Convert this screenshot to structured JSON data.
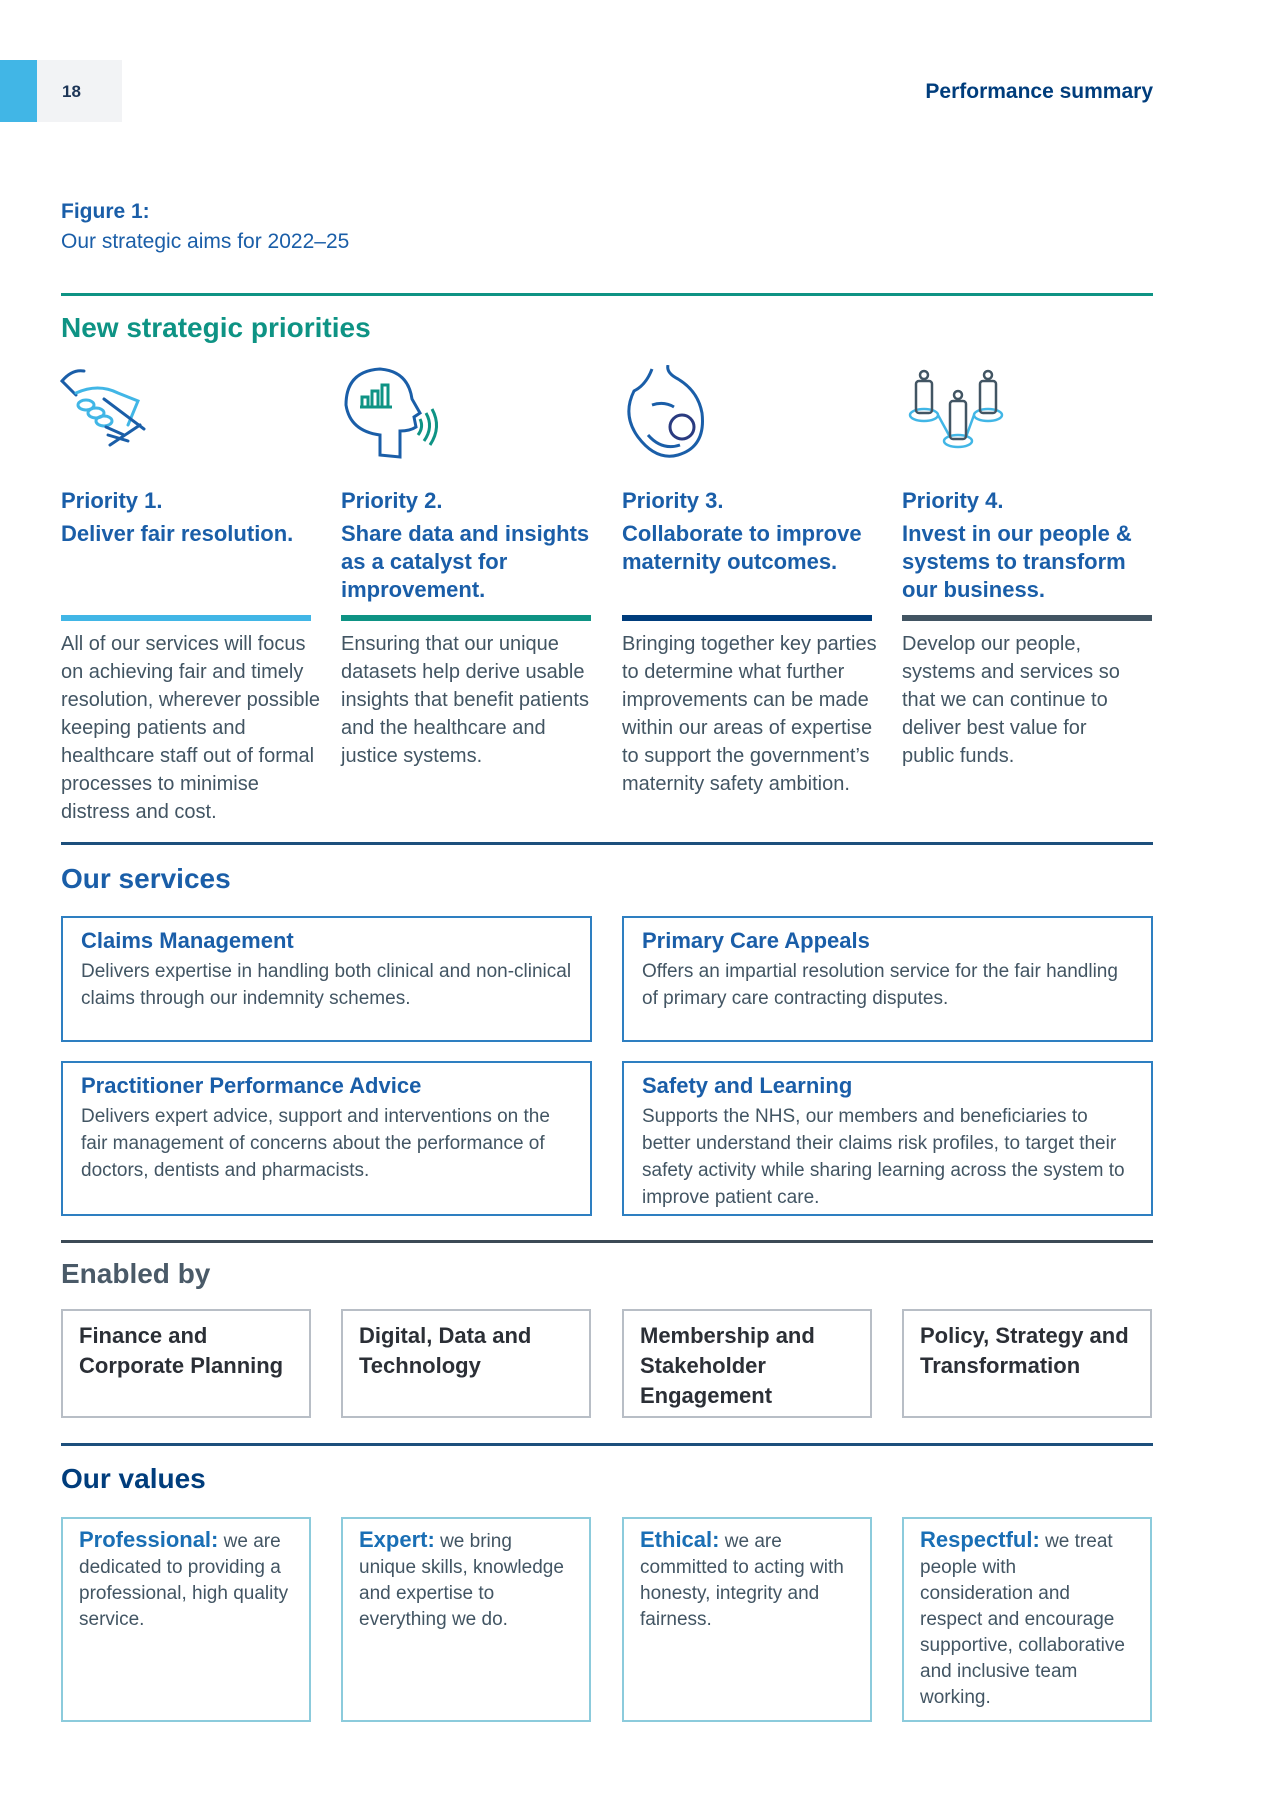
{
  "header": {
    "page_number": "18",
    "section": "Performance summary"
  },
  "figure": {
    "label": "Figure 1:",
    "subtitle": "Our strategic aims for 2022–25"
  },
  "priorities": {
    "heading": "New strategic priorities",
    "items": [
      {
        "label": "Priority 1.",
        "title": "Deliver fair resolution.",
        "body": "All of our services will focus on achieving fair and timely resolution, wherever possible keeping patients and healthcare staff out of formal processes to minimise distress and cost.",
        "icon": "handshake-icon",
        "color": "#41b6e6"
      },
      {
        "label": "Priority 2.",
        "title": "Share data and insights as a catalyst for improvement.",
        "body": "Ensuring that our unique datasets help derive usable insights that benefit patients and the healthcare and justice systems.",
        "icon": "head-data-icon",
        "color": "#0e9384"
      },
      {
        "label": "Priority 3.",
        "title": "Collaborate to improve maternity outcomes.",
        "body": "Bringing together key parties to determine what further improvements can be made within our areas of expertise to support the government’s maternity safety ambition.",
        "icon": "maternity-icon",
        "color": "#003d7c"
      },
      {
        "label": "Priority 4.",
        "title": "Invest in our people & systems to transform our business.",
        "body": "Develop our people, systems and services so that we can continue to deliver best value for public funds.",
        "icon": "people-network-icon",
        "color": "#425563"
      }
    ]
  },
  "services": {
    "heading": "Our services",
    "items": [
      {
        "title": "Claims Management",
        "body": "Delivers expertise in handling both clinical and non-clinical claims through our indemnity schemes."
      },
      {
        "title": "Primary Care Appeals",
        "body": "Offers an impartial resolution service for the fair handling of primary care contracting disputes."
      },
      {
        "title": "Practitioner Performance Advice",
        "body": "Delivers expert advice, support and interventions on the fair management of concerns about the performance of doctors, dentists and pharmacists."
      },
      {
        "title": "Safety and Learning",
        "body": "Supports the NHS, our members and beneficiaries to better understand their claims risk profiles, to target their safety activity while sharing learning across the system to improve patient care."
      }
    ]
  },
  "enablers": {
    "heading": "Enabled by",
    "items": [
      "Finance and Corporate Planning",
      "Digital, Data and Technology",
      "Membership and Stakeholder Engagement",
      "Policy, Strategy and Transformation"
    ]
  },
  "values": {
    "heading": "Our values",
    "items": [
      {
        "name": "Professional:",
        "text": " we are dedicated to providing a professional, high quality service."
      },
      {
        "name": "Expert:",
        "text": " we bring unique skills, knowledge and expertise to everything we do."
      },
      {
        "name": "Ethical:",
        "text": " we are committed to acting with honesty, integrity and fairness."
      },
      {
        "name": "Respectful:",
        "text": " we treat people with consideration and respect and encourage supportive, collaborative and inclusive team working."
      }
    ]
  }
}
